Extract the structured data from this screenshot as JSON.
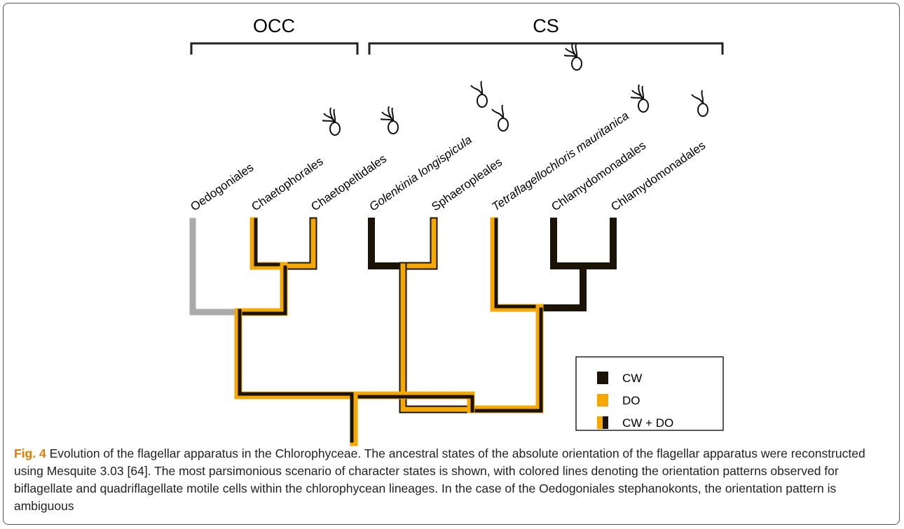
{
  "figure": {
    "groups": [
      {
        "label": "OCC"
      },
      {
        "label": "CS"
      }
    ],
    "taxa": [
      {
        "label": "Oedogoniales",
        "italic": false
      },
      {
        "label": "Chaetophorales",
        "italic": false
      },
      {
        "label": "Chaetopeltidales",
        "italic": false
      },
      {
        "label": "Golenkinia longispicula",
        "italic": true
      },
      {
        "label": "Sphaeropleales",
        "italic": false
      },
      {
        "label": "Tetraflagellochloris mauritanica",
        "italic": true
      },
      {
        "label": "Chlamydomonadales",
        "italic": false
      },
      {
        "label": "Chlamydomonadales",
        "italic": false
      }
    ],
    "legend": [
      {
        "label": "CW",
        "color": "#1a1306"
      },
      {
        "label": "DO",
        "color": "#f5a800"
      },
      {
        "label": "CW + DO",
        "color": "mixed"
      }
    ],
    "caption": {
      "label": "Fig. 4",
      "text": "Evolution of the flagellar apparatus in the Chlorophyceae. The ancestral states of the absolute orientation of the flagellar apparatus were reconstructed using Mesquite 3.03 [64]. The most parsimonious scenario of character states is shown, with colored lines denoting the orientation patterns observed for biflagellate and quadriflagellate motile cells within the chlorophycean lineages. In the case of the Oedogoniales stephanokonts, the orientation pattern is ambiguous"
    }
  }
}
